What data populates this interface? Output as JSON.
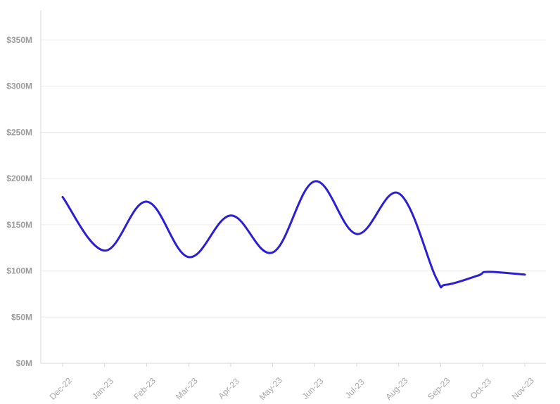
{
  "chart_data": {
    "type": "line",
    "title": "",
    "xlabel": "",
    "ylabel": "",
    "categories": [
      "Dec-22",
      "Jan-23",
      "Feb-23",
      "Mar-23",
      "Apr-23",
      "May-23",
      "Jun-23",
      "Jul-23",
      "Aug-23",
      "Sep-23",
      "Oct-23",
      "Nov-23"
    ],
    "y_ticks": [
      "$0M",
      "$50M",
      "$100M",
      "$150M",
      "$200M",
      "$250M",
      "$300M",
      "$350M"
    ],
    "ylim": [
      0,
      350
    ],
    "grid": true,
    "series": [
      {
        "color": "#2b1fd1",
        "points": [
          {
            "x": "Dec-22",
            "y": 180
          },
          {
            "x": "Jan-23",
            "y": 122
          },
          {
            "x": "Feb-23",
            "y": 175
          },
          {
            "x": "Mar-23",
            "y": 115
          },
          {
            "x": "Apr-23",
            "y": 160
          },
          {
            "x": "May-23",
            "y": 120
          },
          {
            "x": "Jun-23",
            "y": 197
          },
          {
            "x": "Jul-23",
            "y": 140
          },
          {
            "x": "Aug-23",
            "y": 184
          },
          {
            "x": "Sep-23",
            "y": 93
          },
          {
            "x": "Sep-23",
            "y": 85
          },
          {
            "x": "Oct-23",
            "y": 95
          },
          {
            "x": "Oct-23",
            "y": 99
          },
          {
            "x": "Nov-23",
            "y": 96
          }
        ]
      }
    ]
  },
  "colors": {
    "line": "#2b1fd1",
    "grid": "#ececec",
    "axis": "#d8d8d8",
    "tick_text": "#9b9b9b"
  }
}
